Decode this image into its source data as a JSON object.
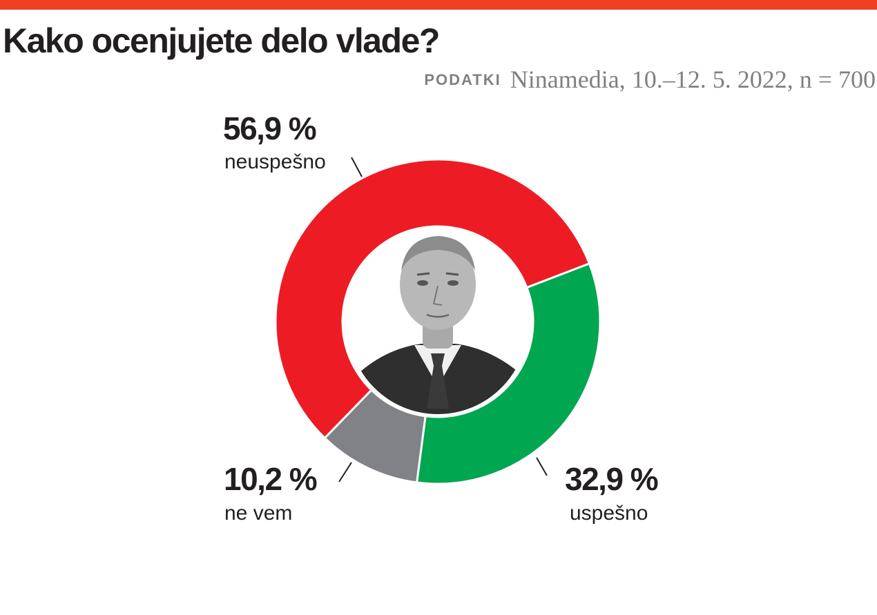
{
  "header": {
    "title": "Kako ocenjujete delo vlade?",
    "source_label": "PODATKI",
    "source_text": "Ninamedia, 10.–12. 5. 2022, n = 700",
    "accent_color": "#ee4022"
  },
  "center_image": {
    "icon": "person-portrait-icon"
  },
  "chart_data": {
    "type": "pie",
    "variant": "donut",
    "title": "Kako ocenjujete delo vlade?",
    "categories": [
      "neuspešno",
      "uspešno",
      "ne vem"
    ],
    "values": [
      56.9,
      32.9,
      10.2
    ],
    "value_labels": [
      "56,9 %",
      "32,9 %",
      "10,2 %"
    ],
    "colors": [
      "#ed1c24",
      "#00a650",
      "#808285"
    ],
    "unit": "%"
  }
}
